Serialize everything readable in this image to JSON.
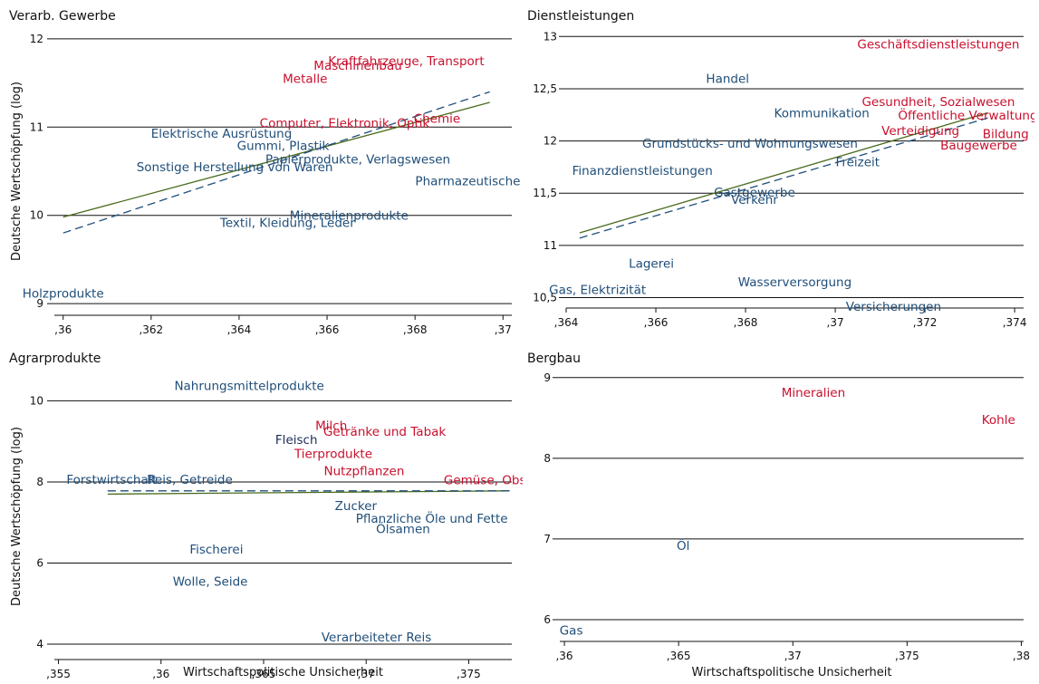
{
  "colors": {
    "red": "#c8102e",
    "blue": "#1f4e79",
    "navy": "#1a2a5a",
    "fit_solid": "#4a6b1d",
    "fit_dashed": "#1f4e79"
  },
  "chart_data": [
    {
      "type": "scatter",
      "title": "Verarb. Gewerbe",
      "xlabel": "",
      "ylabel": "Deutsche Wertschöpfung (log)",
      "xlim": [
        0.3598,
        0.3702
      ],
      "ylim": [
        8.95,
        12.05
      ],
      "xticks": [
        0.36,
        0.362,
        0.364,
        0.366,
        0.368,
        0.37
      ],
      "xtick_labels": [
        ",36",
        ",362",
        ",364",
        ",366",
        ",368",
        ",37"
      ],
      "yticks": [
        9,
        10,
        11,
        12
      ],
      "ytick_labels": [
        "9",
        "10",
        "11",
        "12"
      ],
      "grid": true,
      "points": [
        {
          "label": "Kraftfahrzeuge, Transport",
          "x": 0.3678,
          "y": 11.75,
          "group": "red"
        },
        {
          "label": "Maschinenbau",
          "x": 0.3667,
          "y": 11.7,
          "group": "red"
        },
        {
          "label": "Metalle",
          "x": 0.3655,
          "y": 11.55,
          "group": "red"
        },
        {
          "label": "Computer, Elektronik, Optik",
          "x": 0.3664,
          "y": 11.05,
          "group": "red"
        },
        {
          "label": "Chemie",
          "x": 0.3685,
          "y": 11.1,
          "group": "red"
        },
        {
          "label": "Elektrische Ausrüstung",
          "x": 0.3636,
          "y": 10.93,
          "group": "blue"
        },
        {
          "label": "Gummi, Plastik",
          "x": 0.365,
          "y": 10.79,
          "group": "blue"
        },
        {
          "label": "Papierprodukte, Verlagswesen",
          "x": 0.3667,
          "y": 10.64,
          "group": "blue"
        },
        {
          "label": "Sonstige Herstellung von Waren",
          "x": 0.3639,
          "y": 10.55,
          "group": "blue"
        },
        {
          "label": "Pharmazeutische",
          "x": 0.3692,
          "y": 10.39,
          "group": "blue"
        },
        {
          "label": "Mineralienprodukte",
          "x": 0.3665,
          "y": 10.0,
          "group": "blue"
        },
        {
          "label": "Textil, Kleidung, Leder",
          "x": 0.3651,
          "y": 9.92,
          "group": "blue"
        },
        {
          "label": "Holzprodukte",
          "x": 0.36,
          "y": 9.12,
          "group": "blue"
        }
      ],
      "fit_lines": [
        {
          "style": "solid",
          "x": [
            0.36,
            0.3697
          ],
          "y": [
            9.98,
            11.28
          ]
        },
        {
          "style": "dashed",
          "x": [
            0.36,
            0.3697
          ],
          "y": [
            9.8,
            11.4
          ]
        }
      ]
    },
    {
      "type": "scatter",
      "title": "Dienstleistungen",
      "xlabel": "",
      "ylabel": "",
      "xlim": [
        0.364,
        0.3742
      ],
      "ylim": [
        10.47,
        13.02
      ],
      "xticks": [
        0.364,
        0.366,
        0.368,
        0.37,
        0.372,
        0.374
      ],
      "xtick_labels": [
        ",364",
        ",366",
        ",368",
        ",37",
        ",372",
        ",374"
      ],
      "yticks": [
        10.5,
        11,
        11.5,
        12,
        12.5,
        13
      ],
      "ytick_labels": [
        "10,5",
        "11",
        "11,5",
        "12",
        "12,5",
        "13"
      ],
      "grid": true,
      "points": [
        {
          "label": "Geschäftsdienstleistungen",
          "x": 0.3723,
          "y": 12.93,
          "group": "red"
        },
        {
          "label": "Handel",
          "x": 0.3676,
          "y": 12.6,
          "group": "blue"
        },
        {
          "label": "Gesundheit, Sozialwesen",
          "x": 0.3723,
          "y": 12.38,
          "group": "red"
        },
        {
          "label": "Kommunikation",
          "x": 0.3697,
          "y": 12.27,
          "group": "blue"
        },
        {
          "label": "Öffentliche Verwaltung,",
          "x": 0.373,
          "y": 12.25,
          "group": "red"
        },
        {
          "label": "Verteidigung",
          "x": 0.3719,
          "y": 12.1,
          "group": "red"
        },
        {
          "label": "Bildung",
          "x": 0.3738,
          "y": 12.07,
          "group": "red"
        },
        {
          "label": "Baugewerbe",
          "x": 0.3732,
          "y": 11.96,
          "group": "red"
        },
        {
          "label": "Grundstücks- und Wohnungswesen",
          "x": 0.3681,
          "y": 11.98,
          "group": "blue"
        },
        {
          "label": "Freizeit",
          "x": 0.3705,
          "y": 11.8,
          "group": "blue"
        },
        {
          "label": "Finanzdienstleistungen",
          "x": 0.3657,
          "y": 11.72,
          "group": "blue"
        },
        {
          "label": "Gastgewerbe",
          "x": 0.3682,
          "y": 11.51,
          "group": "blue"
        },
        {
          "label": "Verkehr",
          "x": 0.3682,
          "y": 11.44,
          "group": "blue"
        },
        {
          "label": "Lagerei",
          "x": 0.3659,
          "y": 10.83,
          "group": "blue"
        },
        {
          "label": "Wasserversorgung",
          "x": 0.3691,
          "y": 10.65,
          "group": "blue"
        },
        {
          "label": "Gas, Elektrizität",
          "x": 0.3647,
          "y": 10.58,
          "group": "blue"
        },
        {
          "label": "Versicherungen",
          "x": 0.3713,
          "y": 10.42,
          "group": "blue"
        }
      ],
      "fit_lines": [
        {
          "style": "solid",
          "x": [
            0.3643,
            0.3734
          ],
          "y": [
            11.12,
            12.27
          ]
        },
        {
          "style": "dashed",
          "x": [
            0.3643,
            0.3734
          ],
          "y": [
            11.07,
            12.22
          ]
        }
      ]
    },
    {
      "type": "scatter",
      "title": "Agrarprodukte",
      "xlabel": "Wirtschaftspolitische Unsicherheit",
      "ylabel": "Deutsche Wertschöpfung (log)",
      "xlim": [
        0.3548,
        0.3771
      ],
      "ylim": [
        3.8,
        10.5
      ],
      "xticks": [
        0.355,
        0.36,
        0.365,
        0.37,
        0.375
      ],
      "xtick_labels": [
        ",355",
        ",36",
        ",365",
        ",37",
        ",375"
      ],
      "yticks": [
        4,
        6,
        8,
        10
      ],
      "ytick_labels": [
        "4",
        "6",
        "8",
        "10"
      ],
      "grid": true,
      "points": [
        {
          "label": "Nahrungsmittelprodukte",
          "x": 0.3643,
          "y": 10.38,
          "group": "blue"
        },
        {
          "label": "Milch",
          "x": 0.3683,
          "y": 9.4,
          "group": "red"
        },
        {
          "label": "Getränke und Tabak",
          "x": 0.3709,
          "y": 9.25,
          "group": "red"
        },
        {
          "label": "Fleisch",
          "x": 0.3666,
          "y": 9.05,
          "group": "navy"
        },
        {
          "label": "Tierprodukte",
          "x": 0.3684,
          "y": 8.7,
          "group": "red"
        },
        {
          "label": "Nutzpflanzen",
          "x": 0.3699,
          "y": 8.28,
          "group": "red"
        },
        {
          "label": "Gemüse, Obst",
          "x": 0.3759,
          "y": 8.05,
          "group": "red"
        },
        {
          "label": "Forstwirtschaft",
          "x": 0.3576,
          "y": 8.07,
          "group": "blue"
        },
        {
          "label": "Reis, Getreide",
          "x": 0.3614,
          "y": 8.07,
          "group": "blue"
        },
        {
          "label": "Zucker",
          "x": 0.3695,
          "y": 7.42,
          "group": "blue"
        },
        {
          "label": "Pflanzliche Öle und Fette",
          "x": 0.3732,
          "y": 7.1,
          "group": "blue"
        },
        {
          "label": "Ölsamen",
          "x": 0.3718,
          "y": 6.85,
          "group": "blue"
        },
        {
          "label": "Fischerei",
          "x": 0.3627,
          "y": 6.35,
          "group": "blue"
        },
        {
          "label": "Wolle, Seide",
          "x": 0.3624,
          "y": 5.55,
          "group": "blue"
        },
        {
          "label": "Verarbeiteter Reis",
          "x": 0.3705,
          "y": 4.18,
          "group": "blue"
        }
      ],
      "fit_lines": [
        {
          "style": "solid",
          "x": [
            0.3574,
            0.377
          ],
          "y": [
            7.7,
            7.78
          ]
        },
        {
          "style": "dashed",
          "x": [
            0.3574,
            0.377
          ],
          "y": [
            7.78,
            7.78
          ]
        }
      ]
    },
    {
      "type": "scatter",
      "title": "Bergbau",
      "xlabel": "Wirtschaftspolitische Unsicherheit",
      "ylabel": "",
      "xlim": [
        0.3598,
        0.3801
      ],
      "ylim": [
        5.82,
        9.02
      ],
      "xticks": [
        0.36,
        0.365,
        0.37,
        0.375,
        0.38
      ],
      "xtick_labels": [
        ",36",
        ",365",
        ",37",
        ",375",
        ",38"
      ],
      "yticks": [
        6,
        7,
        8,
        9
      ],
      "ytick_labels": [
        "6",
        "7",
        "8",
        "9"
      ],
      "grid": true,
      "points": [
        {
          "label": "Mineralien",
          "x": 0.3709,
          "y": 8.82,
          "group": "red"
        },
        {
          "label": "Kohle",
          "x": 0.379,
          "y": 8.48,
          "group": "red"
        },
        {
          "label": "Öl",
          "x": 0.3652,
          "y": 6.92,
          "group": "blue"
        },
        {
          "label": "Gas",
          "x": 0.3603,
          "y": 5.87,
          "group": "blue"
        }
      ],
      "fit_lines": []
    }
  ]
}
